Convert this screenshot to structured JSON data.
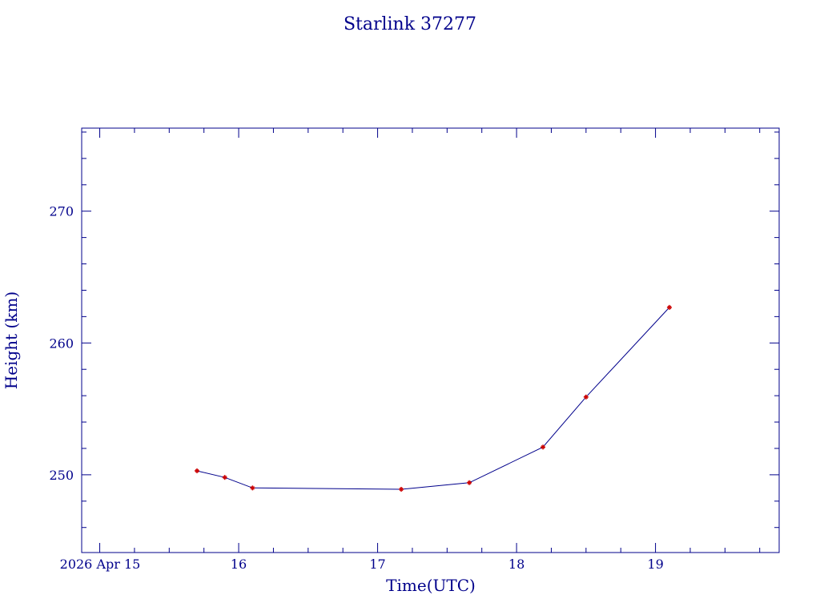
{
  "chart_data": {
    "type": "line",
    "title": "Starlink 37277",
    "xlabel": "Time(UTC)",
    "ylabel": "Height (km)",
    "x_axis_origin_label": "2026 Apr 15",
    "x_ticks": [
      {
        "value": 16,
        "label": "16"
      },
      {
        "value": 17,
        "label": "17"
      },
      {
        "value": 18,
        "label": "18"
      },
      {
        "value": 19,
        "label": "19"
      }
    ],
    "y_ticks": [
      {
        "value": 250,
        "label": "250"
      },
      {
        "value": 260,
        "label": "260"
      },
      {
        "value": 270,
        "label": "270"
      }
    ],
    "xlim": [
      14.87,
      19.89
    ],
    "ylim": [
      244.1,
      276.3
    ],
    "grid": false,
    "series": [
      {
        "x": [
          15.7,
          15.9,
          16.1,
          17.17,
          17.66,
          18.19,
          18.5,
          19.1
        ],
        "y": [
          250.3,
          249.8,
          249.0,
          248.9,
          249.4,
          252.1,
          255.9,
          262.7
        ],
        "line_color": "#00008b",
        "marker_color": "#cc0000"
      }
    ]
  }
}
